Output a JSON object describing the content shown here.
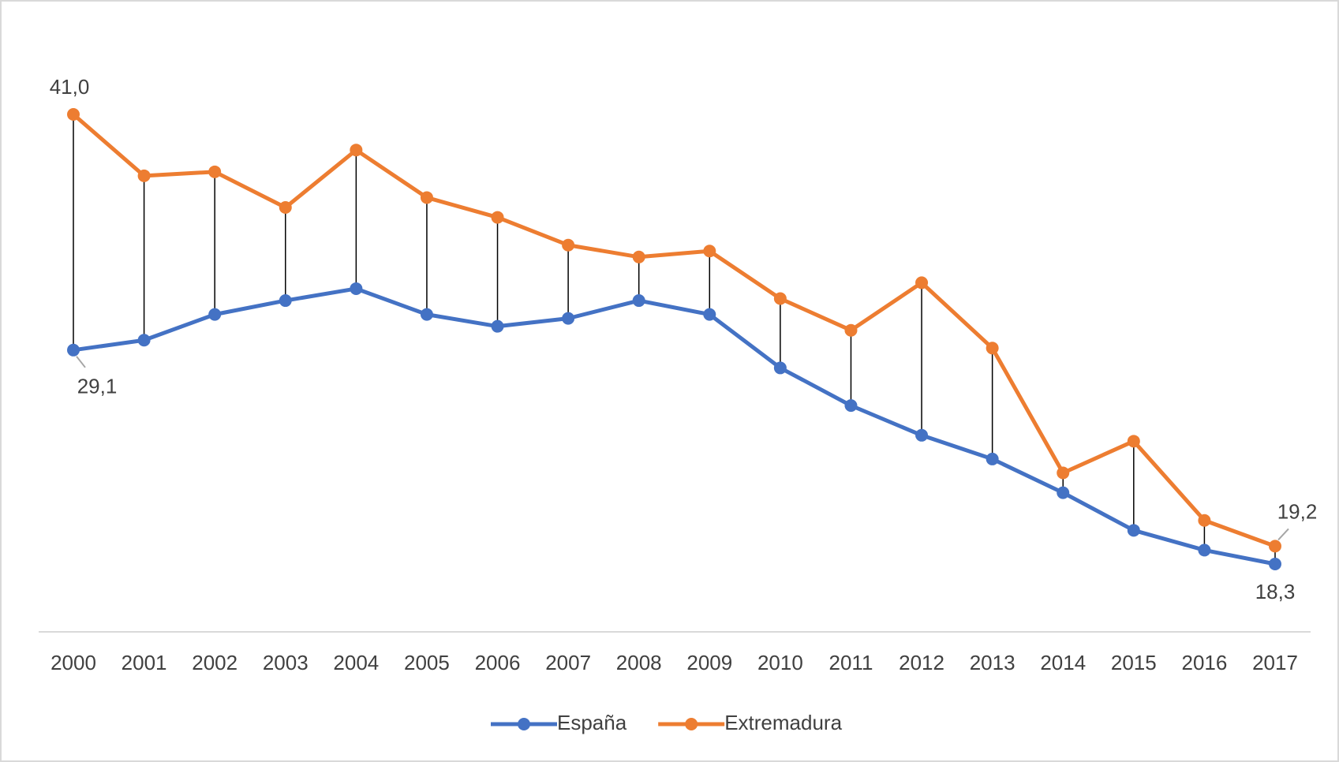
{
  "chart_data": {
    "type": "line",
    "categories": [
      "2000",
      "2001",
      "2002",
      "2003",
      "2004",
      "2005",
      "2006",
      "2007",
      "2008",
      "2009",
      "2010",
      "2011",
      "2012",
      "2013",
      "2014",
      "2015",
      "2016",
      "2017"
    ],
    "series": [
      {
        "name": "España",
        "color": "#4472c4",
        "values": [
          29.1,
          29.6,
          30.9,
          31.6,
          32.2,
          30.9,
          30.3,
          30.7,
          31.6,
          30.9,
          28.2,
          26.3,
          24.8,
          23.6,
          21.9,
          20.0,
          19.0,
          18.3
        ],
        "value_labels": [
          "29,1",
          null,
          null,
          null,
          null,
          null,
          null,
          null,
          null,
          null,
          null,
          null,
          null,
          null,
          null,
          null,
          null,
          "18,3"
        ]
      },
      {
        "name": "Extremadura",
        "color": "#ed7d31",
        "values": [
          41.0,
          37.9,
          38.1,
          36.3,
          39.2,
          36.8,
          35.8,
          34.4,
          33.8,
          34.1,
          31.7,
          30.1,
          32.5,
          29.2,
          22.9,
          24.5,
          20.5,
          19.2
        ],
        "value_labels": [
          "41,0",
          null,
          null,
          null,
          null,
          null,
          null,
          null,
          null,
          null,
          null,
          null,
          null,
          null,
          null,
          null,
          null,
          "19,2"
        ]
      }
    ],
    "high_low_lines": true,
    "legend": "bottom"
  }
}
